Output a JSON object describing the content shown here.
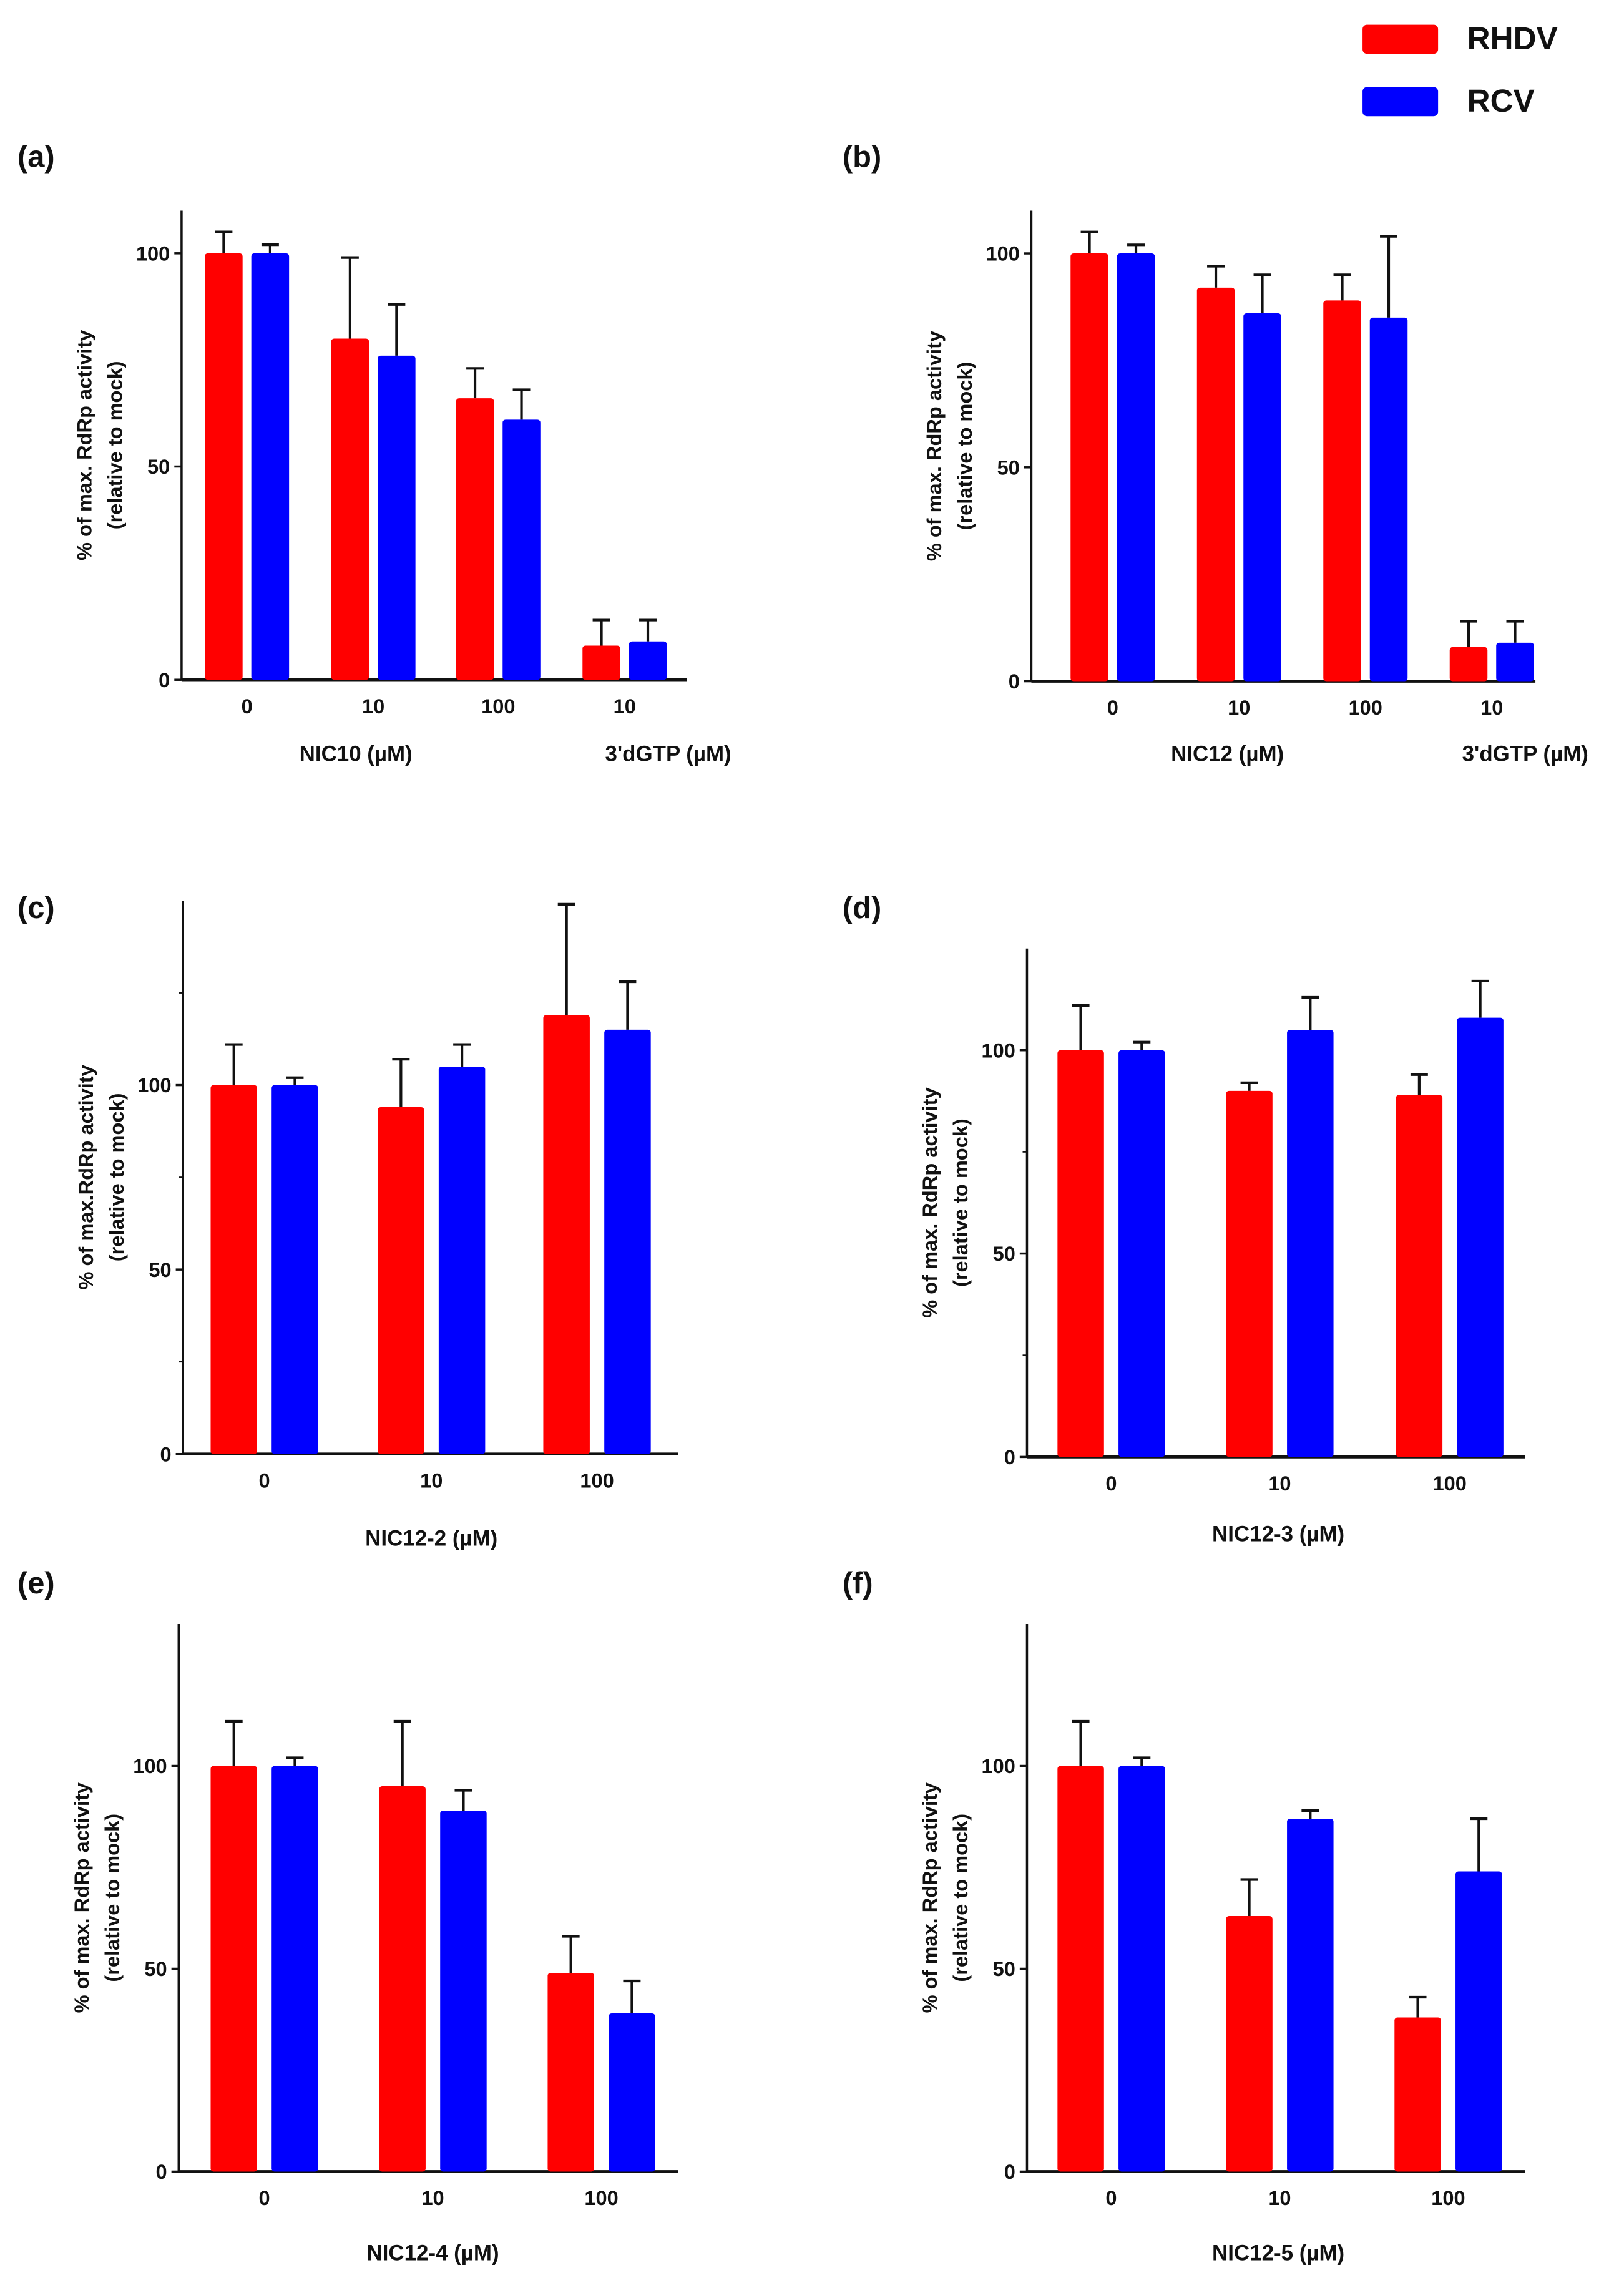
{
  "legend": {
    "items": [
      {
        "label": "RHDV",
        "color": "#ff0000"
      },
      {
        "label": "RCV",
        "color": "#0000ff"
      }
    ]
  },
  "chart_data": [
    {
      "panel": "(a)",
      "type": "bar",
      "ylabel": [
        "% of max. RdRp activity",
        "(relative to mock)"
      ],
      "ylim": [
        0,
        110
      ],
      "yticks": [
        0,
        50,
        100
      ],
      "minor_yticks": [],
      "categories": [
        "0",
        "10",
        "100",
        "10"
      ],
      "xlabels": [
        "NIC10 (µM)",
        "3'dGTP (µM)"
      ],
      "series": [
        {
          "name": "RHDV",
          "values": [
            100,
            80,
            66,
            8
          ],
          "error_upper": [
            105,
            99,
            73,
            14
          ]
        },
        {
          "name": "RCV",
          "values": [
            100,
            76,
            61,
            9
          ],
          "error_upper": [
            102,
            88,
            68,
            14
          ]
        }
      ]
    },
    {
      "panel": "(b)",
      "type": "bar",
      "ylabel": [
        "% of max. RdRp activity",
        "(relative to mock)"
      ],
      "ylim": [
        0,
        110
      ],
      "yticks": [
        0,
        50,
        100
      ],
      "minor_yticks": [],
      "categories": [
        "0",
        "10",
        "100",
        "10"
      ],
      "xlabels": [
        "NIC12 (µM)",
        "3'dGTP (µM)"
      ],
      "series": [
        {
          "name": "RHDV",
          "values": [
            100,
            92,
            89,
            8
          ],
          "error_upper": [
            105,
            97,
            95,
            14
          ]
        },
        {
          "name": "RCV",
          "values": [
            100,
            86,
            85,
            9
          ],
          "error_upper": [
            102,
            95,
            104,
            14
          ]
        }
      ]
    },
    {
      "panel": "(c)",
      "type": "bar",
      "ylabel": [
        "% of max.RdRp activity",
        "(relative to mock)"
      ],
      "ylim": [
        0,
        150
      ],
      "yticks": [
        0,
        50,
        100
      ],
      "minor_yticks": [
        25,
        75,
        125
      ],
      "categories": [
        "0",
        "10",
        "100"
      ],
      "xlabels": [
        "NIC12-2 (µM)"
      ],
      "series": [
        {
          "name": "RHDV",
          "values": [
            100,
            94,
            119
          ],
          "error_upper": [
            111,
            107,
            149
          ]
        },
        {
          "name": "RCV",
          "values": [
            100,
            105,
            115
          ],
          "error_upper": [
            102,
            111,
            128
          ]
        }
      ]
    },
    {
      "panel": "(d)",
      "type": "bar",
      "ylabel": [
        "% of max. RdRp activity",
        "(relative to mock)"
      ],
      "ylim": [
        0,
        125
      ],
      "yticks": [
        0,
        50,
        100
      ],
      "minor_yticks": [
        25,
        75
      ],
      "categories": [
        "0",
        "10",
        "100"
      ],
      "xlabels": [
        "NIC12-3 (µM)"
      ],
      "series": [
        {
          "name": "RHDV",
          "values": [
            100,
            90,
            89
          ],
          "error_upper": [
            111,
            92,
            94
          ]
        },
        {
          "name": "RCV",
          "values": [
            100,
            105,
            108
          ],
          "error_upper": [
            102,
            113,
            117
          ]
        }
      ]
    },
    {
      "panel": "(e)",
      "type": "bar",
      "ylabel": [
        "% of max. RdRp activity",
        "(relative to mock)"
      ],
      "ylim": [
        0,
        135
      ],
      "yticks": [
        0,
        50,
        100
      ],
      "minor_yticks": [],
      "categories": [
        "0",
        "10",
        "100"
      ],
      "xlabels": [
        "NIC12-4 (µM)"
      ],
      "series": [
        {
          "name": "RHDV",
          "values": [
            100,
            95,
            49
          ],
          "error_upper": [
            111,
            111,
            58
          ]
        },
        {
          "name": "RCV",
          "values": [
            100,
            89,
            39
          ],
          "error_upper": [
            102,
            94,
            47
          ]
        }
      ]
    },
    {
      "panel": "(f)",
      "type": "bar",
      "ylabel": [
        "% of max. RdRp activity",
        "(relative to mock)"
      ],
      "ylim": [
        0,
        135
      ],
      "yticks": [
        0,
        50,
        100
      ],
      "minor_yticks": [],
      "categories": [
        "0",
        "10",
        "100"
      ],
      "xlabels": [
        "NIC12-5 (µM)"
      ],
      "series": [
        {
          "name": "RHDV",
          "values": [
            100,
            63,
            38
          ],
          "error_upper": [
            111,
            72,
            43
          ]
        },
        {
          "name": "RCV",
          "values": [
            100,
            87,
            74
          ],
          "error_upper": [
            102,
            89,
            87
          ]
        }
      ]
    }
  ]
}
